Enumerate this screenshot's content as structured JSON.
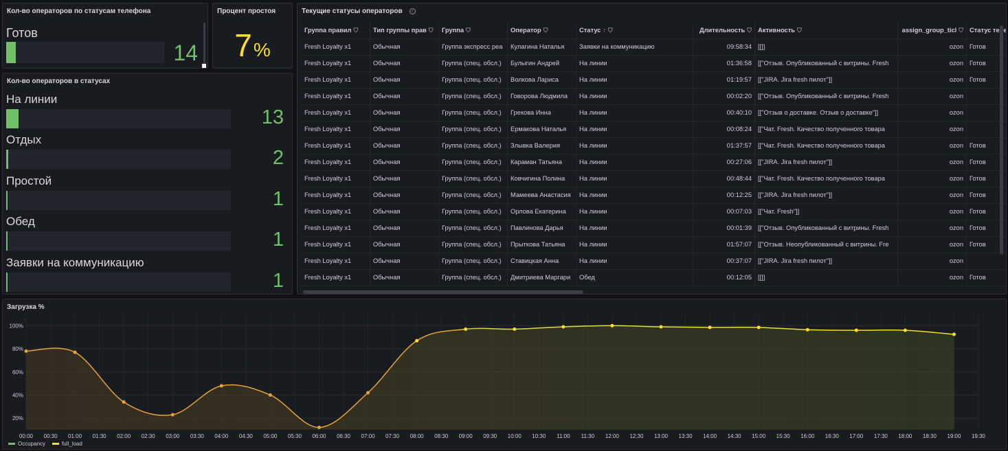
{
  "panel_phone": {
    "title": "Кол-во операторов по статусам телефона",
    "label": "Готов",
    "value": "14",
    "fill": 0.06
  },
  "panel_idle": {
    "title": "Процент простоя",
    "value": "7",
    "unit": "%"
  },
  "panel_statuses": {
    "title": "Кол-во операторов в статусах",
    "items": [
      {
        "label": "На линии",
        "value": "13",
        "fill": 0.055
      },
      {
        "label": "Отдых",
        "value": "2",
        "fill": 0.01
      },
      {
        "label": "Простой",
        "value": "1",
        "fill": 0.005
      },
      {
        "label": "Обед",
        "value": "1",
        "fill": 0.005
      },
      {
        "label": "Заявки на коммуникацию",
        "value": "1",
        "fill": 0.005
      }
    ]
  },
  "table": {
    "title": "Текущие статусы операторов",
    "headers": [
      "Группа правил",
      "Тип группы прав",
      "Группа",
      "Оператор",
      "Статус",
      "Длительность",
      "Активность",
      "assign_group_ticl",
      "Статус теле"
    ],
    "sort_indicator": "↑",
    "rows": [
      [
        "Fresh Loyalty x1",
        "Обычная",
        "Группа экспресс реа",
        "Кулагина Наталья",
        "Заявки на коммуникацию",
        "09:58:34",
        "[[]]",
        "ozon",
        "Готов"
      ],
      [
        "Fresh Loyalty x1",
        "Обычная",
        "Группа (спец. обсл.)",
        "Булыгин Андрей",
        "На линии",
        "01:36:58",
        "[[\"Отзыв. Опубликованный с витрины. Fresh",
        "ozon",
        "Готов"
      ],
      [
        "Fresh Loyalty x1",
        "Обычная",
        "Группа (спец. обсл.)",
        "Волкова Лариса",
        "На линии",
        "01:19:57",
        "[[\"JIRA. Jira fresh пилот\"]]",
        "ozon",
        "Готов"
      ],
      [
        "Fresh Loyalty x1",
        "Обычная",
        "Группа (спец. обсл.)",
        "Говорова Людмила",
        "На линии",
        "00:02:20",
        "[[\"Отзыв. Опубликованный с витрины. Fresh",
        "ozon",
        ""
      ],
      [
        "Fresh Loyalty x1",
        "Обычная",
        "Группа (спец. обсл.)",
        "Грекова Инна",
        "На линии",
        "00:40:10",
        "[[\"Отзыв о доставке. Отзыв о доставке\"]]",
        "ozon",
        ""
      ],
      [
        "Fresh Loyalty x1",
        "Обычная",
        "Группа (спец. обсл.)",
        "Ермакова Наталья",
        "На линии",
        "00:08:24",
        "[[\"Чат. Fresh. Качество полученного товара",
        "ozon",
        ""
      ],
      [
        "Fresh Loyalty x1",
        "Обычная",
        "Группа (спец. обсл.)",
        "Злывка Валерия",
        "На линии",
        "01:37:57",
        "[[\"Чат. Fresh. Качество полученного товара",
        "ozon",
        "Готов"
      ],
      [
        "Fresh Loyalty x1",
        "Обычная",
        "Группа (спец. обсл.)",
        "Караман Татьяна",
        "На линии",
        "00:27:06",
        "[[\"JIRA. Jira fresh пилот\"]]",
        "ozon",
        "Готов"
      ],
      [
        "Fresh Loyalty x1",
        "Обычная",
        "Группа (спец. обсл.)",
        "Ковчигина Полина",
        "На линии",
        "00:48:44",
        "[[\"Чат. Fresh. Качество полученного товара",
        "ozon",
        "Готов"
      ],
      [
        "Fresh Loyalty x1",
        "Обычная",
        "Группа (спец. обсл.)",
        "Мамеева Анастасия",
        "На линии",
        "00:12:25",
        "[[\"JIRA. Jira fresh пилот\"]]",
        "ozon",
        "Готов"
      ],
      [
        "Fresh Loyalty x1",
        "Обычная",
        "Группа (спец. обсл.)",
        "Орлова Екатерина",
        "На линии",
        "00:07:03",
        "[[\"Чат. Fresh\"]]",
        "ozon",
        "Готов"
      ],
      [
        "Fresh Loyalty x1",
        "Обычная",
        "Группа (спец. обсл.)",
        "Павлинова Дарья",
        "На линии",
        "00:01:39",
        "[[\"Отзыв. Опубликованный с витрины. Fresh",
        "ozon",
        "Готов"
      ],
      [
        "Fresh Loyalty x1",
        "Обычная",
        "Группа (спец. обсл.)",
        "Прыткова Татьяна",
        "На линии",
        "01:57:07",
        "[[\"Отзыв. Неопубликованный с витрины. Fre",
        "ozon",
        "Готов"
      ],
      [
        "Fresh Loyalty x1",
        "Обычная",
        "Группа (спец. обсл.)",
        "Ставицкая Анна",
        "На линии",
        "00:37:07",
        "[[\"JIRA. Jira fresh пилот\"]]",
        "ozon",
        ""
      ],
      [
        "Fresh Loyalty x1",
        "Обычная",
        "Группа (спец. обсл.)",
        "Дмитриева Маргари",
        "Обед",
        "00:12:05",
        "[[]]",
        "ozon",
        "Готов"
      ]
    ]
  },
  "chart_data": {
    "type": "line",
    "title": "Загрузка %",
    "y_ticks": [
      "20%",
      "40%",
      "60%",
      "80%",
      "100%"
    ],
    "ylim": [
      10,
      105
    ],
    "x_ticks": [
      "00:00",
      "00:30",
      "01:00",
      "01:30",
      "02:00",
      "02:30",
      "03:00",
      "03:30",
      "04:00",
      "04:30",
      "05:00",
      "05:30",
      "06:00",
      "06:30",
      "07:00",
      "07:30",
      "08:00",
      "08:30",
      "09:00",
      "09:30",
      "10:00",
      "10:30",
      "11:00",
      "11:30",
      "12:00",
      "12:30",
      "13:00",
      "13:30",
      "14:00",
      "14:30",
      "15:00",
      "15:30",
      "16:00",
      "16:30",
      "17:00",
      "17:30",
      "18:00",
      "18:30",
      "19:00",
      "19:30"
    ],
    "series": [
      {
        "name": "full_load",
        "x": [
          "00:00",
          "01:00",
          "02:00",
          "03:00",
          "04:00",
          "05:00",
          "06:00",
          "07:00",
          "08:00",
          "09:00",
          "10:00",
          "11:00",
          "12:00",
          "13:00",
          "14:00",
          "15:00",
          "16:00",
          "17:00",
          "18:00",
          "19:00"
        ],
        "values": [
          78,
          77,
          34,
          23,
          48,
          40,
          12,
          42,
          87,
          97,
          97,
          99,
          100,
          99,
          98.5,
          98.5,
          96.5,
          96,
          96,
          92.5
        ]
      }
    ],
    "legend": [
      "Occupancy",
      "full_load"
    ],
    "legend_colors": [
      "#73bf69",
      "#fade2a"
    ]
  },
  "colors": {
    "green": "#73bf69",
    "yellow": "#fade2a",
    "background": "#111217",
    "panel": "#181b1f"
  }
}
